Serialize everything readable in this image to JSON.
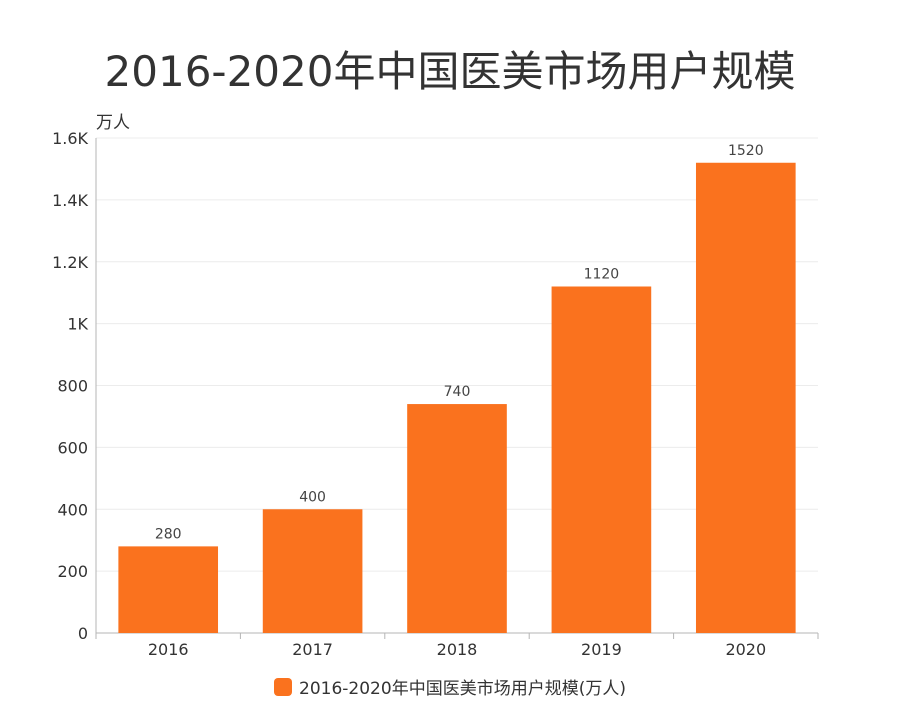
{
  "title": "2016-2020年中国医美市场用户规模",
  "colors": {
    "bar": "#fa721e",
    "grid": "#ececec",
    "axis": "#b5b5b5",
    "text": "#333333",
    "label": "#444444"
  },
  "chart_data": {
    "type": "bar",
    "title": "2016-2020年中国医美市场用户规模",
    "categories": [
      "2016",
      "2017",
      "2018",
      "2019",
      "2020"
    ],
    "series": [
      {
        "name": "2016-2020年中国医美市场用户规模(万人)",
        "values": [
          280,
          400,
          740,
          1120,
          1520
        ]
      }
    ],
    "data_labels": [
      "280",
      "400",
      "740",
      "1120",
      "1520"
    ],
    "ylabel": "万人",
    "ylim": [
      0,
      1600
    ],
    "yticks": [
      0,
      200,
      400,
      600,
      800,
      1000,
      1200,
      1400,
      1600
    ],
    "ytick_labels": [
      "0",
      "200",
      "400",
      "600",
      "800",
      "1K",
      "1.2K",
      "1.4K",
      "1.6K"
    ],
    "grid": true,
    "legend": "bottom"
  }
}
